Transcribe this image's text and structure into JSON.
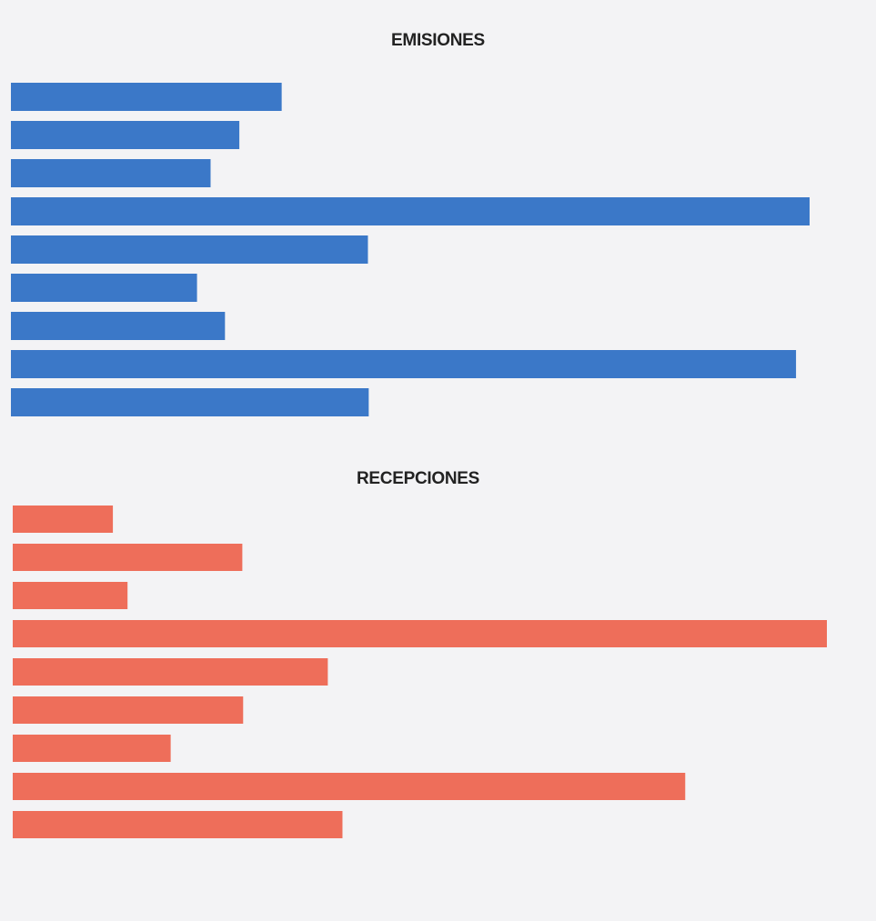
{
  "chart_data": [
    {
      "type": "bar",
      "orientation": "horizontal",
      "title": "EMISIONES",
      "color": "#3b78c8",
      "grid": false,
      "xlim": [
        0,
        100
      ],
      "values": [
        33.9,
        28.6,
        25.0,
        100.0,
        44.7,
        23.3,
        26.8,
        98.3,
        44.8
      ]
    },
    {
      "type": "bar",
      "orientation": "horizontal",
      "title": "RECEPCIONES",
      "color": "#ee6e5a",
      "grid": false,
      "xlim": [
        0,
        100
      ],
      "values": [
        12.3,
        28.2,
        14.1,
        100.0,
        38.7,
        28.3,
        19.4,
        82.6,
        40.5
      ]
    }
  ]
}
